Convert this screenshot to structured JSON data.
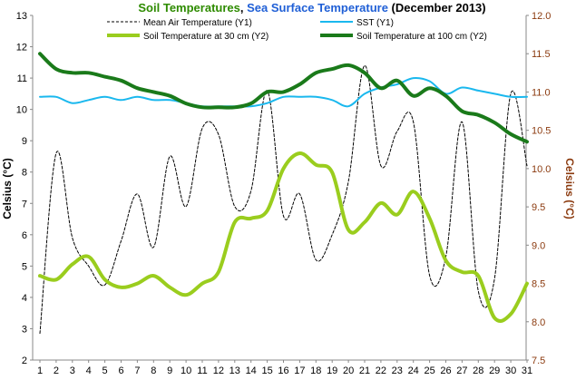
{
  "chart_data": {
    "type": "line",
    "title_parts": [
      {
        "text": "Soil Temperatures",
        "color": "#2e8b00"
      },
      {
        "text": ", ",
        "color": "#000000"
      },
      {
        "text": "Sea Surface Temperature",
        "color": "#1f5fd6"
      },
      {
        "text": " (December 2013)",
        "color": "#000000"
      }
    ],
    "ylabel_left": "Celsius (°C)",
    "ylabel_right": "Celsius (°C)",
    "ylabel_right_color": "#8b3a0e",
    "x_ticks": [
      "1",
      "2",
      "3",
      "4",
      "5",
      "6",
      "7",
      "8",
      "9",
      "10",
      "11",
      "12",
      "13",
      "14",
      "15",
      "16",
      "17",
      "18",
      "19",
      "20",
      "21",
      "22",
      "23",
      "24",
      "25",
      "26",
      "27",
      "28",
      "29",
      "30",
      "31"
    ],
    "y_left": {
      "min": 2,
      "max": 13,
      "ticks": [
        "2",
        "3",
        "4",
        "5",
        "6",
        "7",
        "8",
        "9",
        "10",
        "11",
        "12",
        "13"
      ]
    },
    "y_right": {
      "min": 7.5,
      "max": 12.0,
      "ticks": [
        "7.5",
        "8.0",
        "8.5",
        "9.0",
        "9.5",
        "10.0",
        "10.5",
        "11.0",
        "11.5",
        "12.0"
      ]
    },
    "x": [
      1,
      2,
      3,
      4,
      5,
      6,
      7,
      8,
      9,
      10,
      11,
      12,
      13,
      14,
      15,
      16,
      17,
      18,
      19,
      20,
      21,
      22,
      23,
      24,
      25,
      26,
      27,
      28,
      29,
      30,
      31
    ],
    "series": [
      {
        "name": "Mean Air Temperature (Y1)",
        "axis": "left",
        "color": "#000000",
        "dash": "3,2",
        "width": 1,
        "values": [
          2.85,
          8.6,
          5.9,
          5.0,
          4.4,
          5.8,
          7.3,
          5.6,
          8.5,
          6.9,
          9.4,
          9.2,
          6.9,
          7.4,
          10.6,
          6.6,
          7.3,
          5.2,
          6.0,
          7.7,
          11.4,
          8.2,
          9.3,
          9.6,
          4.7,
          5.3,
          9.6,
          4.2,
          4.6,
          10.5,
          8.2
        ]
      },
      {
        "name": "SST (Y1)",
        "axis": "left",
        "color": "#1ab8ee",
        "dash": "",
        "width": 2,
        "values": [
          10.4,
          10.4,
          10.2,
          10.3,
          10.4,
          10.3,
          10.4,
          10.3,
          10.3,
          10.2,
          10.1,
          10.1,
          10.1,
          10.1,
          10.2,
          10.4,
          10.4,
          10.4,
          10.3,
          10.1,
          10.5,
          10.7,
          10.8,
          11.0,
          10.9,
          10.5,
          10.7,
          10.6,
          10.5,
          10.4,
          10.4
        ]
      },
      {
        "name": "Soil Temperature at 30 cm (Y2)",
        "axis": "right",
        "color": "#9acd1e",
        "dash": "",
        "width": 4,
        "values": [
          8.6,
          8.55,
          8.75,
          8.85,
          8.55,
          8.45,
          8.5,
          8.6,
          8.45,
          8.35,
          8.5,
          8.65,
          9.3,
          9.35,
          9.45,
          10.0,
          10.2,
          10.05,
          9.95,
          9.2,
          9.3,
          9.55,
          9.4,
          9.7,
          9.35,
          8.8,
          8.65,
          8.6,
          8.05,
          8.1,
          8.5
        ]
      },
      {
        "name": "Soil Temperature at 100 cm (Y2)",
        "axis": "right",
        "color": "#1a7a1a",
        "dash": "",
        "width": 4,
        "values": [
          11.5,
          11.3,
          11.25,
          11.25,
          11.2,
          11.15,
          11.05,
          11.0,
          10.95,
          10.85,
          10.8,
          10.8,
          10.8,
          10.85,
          11.0,
          11.0,
          11.1,
          11.25,
          11.3,
          11.35,
          11.25,
          11.05,
          11.15,
          10.95,
          11.05,
          10.95,
          10.75,
          10.7,
          10.6,
          10.45,
          10.35
        ]
      }
    ],
    "legend": {
      "placement": "top",
      "columns": 2
    }
  }
}
